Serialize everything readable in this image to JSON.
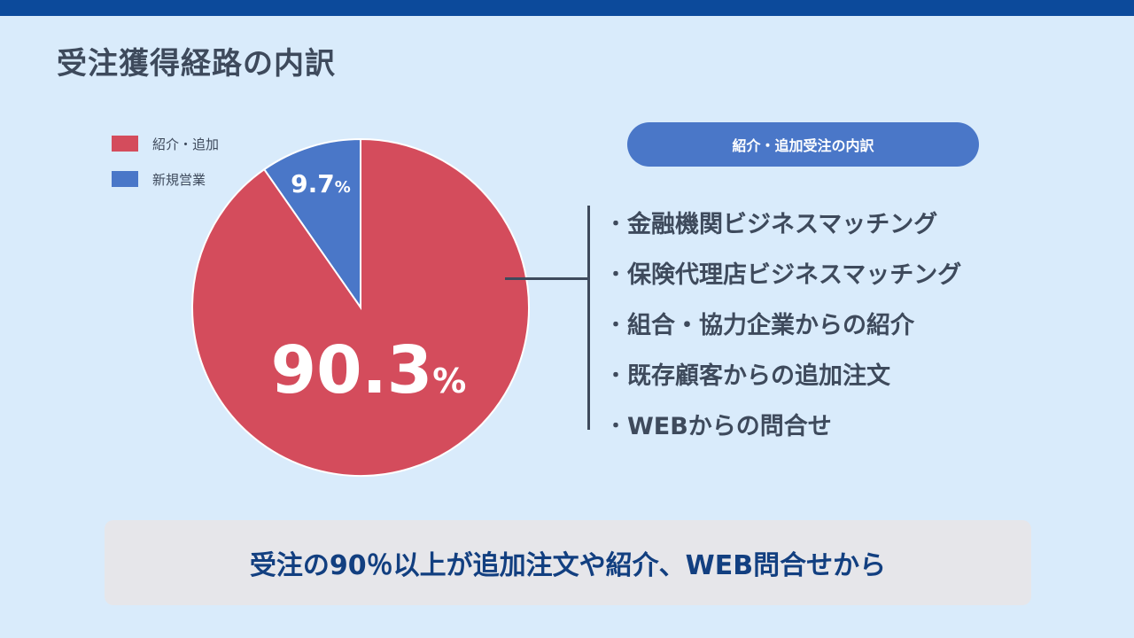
{
  "page": {
    "title": "受注獲得経路の内訳"
  },
  "colors": {
    "topbar": "#0c4a9b",
    "background": "#d9ebfb",
    "primary_slice": "#d44c5c",
    "secondary_slice": "#4a77c8",
    "text": "#3e4a5c",
    "banner_text": "#123f80"
  },
  "chart_data": {
    "type": "pie",
    "title": "",
    "slices": [
      {
        "label": "紹介・追加",
        "value": 90.3,
        "display": "90.3",
        "unit": "%",
        "color": "#d44c5c"
      },
      {
        "label": "新規営業",
        "value": 9.7,
        "display": "9.7",
        "unit": "%",
        "color": "#4a77c8"
      }
    ],
    "legend_placement": "top-left"
  },
  "breakdown": {
    "heading": "紹介・追加受注の内訳",
    "bullet": "・",
    "items": [
      "金融機関ビジネスマッチング",
      "保険代理店ビジネスマッチング",
      "組合・協力企業からの紹介",
      "既存顧客からの追加注文",
      "WEBからの問合せ"
    ]
  },
  "banner": {
    "text": "受注の90％以上が追加注文や紹介、WEB問合せから"
  }
}
